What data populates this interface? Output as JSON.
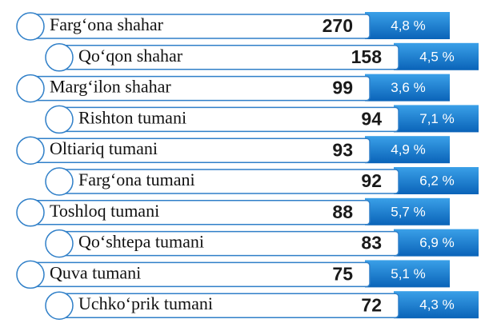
{
  "rows": [
    {
      "name": "Farg‘ona shahar",
      "value": "270",
      "percent": "4,8 %"
    },
    {
      "name": "Qo‘qon shahar",
      "value": "158",
      "percent": "4,5 %"
    },
    {
      "name": "Marg‘ilon shahar",
      "value": "99",
      "percent": "3,6 %"
    },
    {
      "name": "Rishton tumani",
      "value": "94",
      "percent": "7,1 %"
    },
    {
      "name": "Oltiariq tumani",
      "value": "93",
      "percent": "4,9 %"
    },
    {
      "name": "Farg‘ona tumani",
      "value": "92",
      "percent": "6,2 %"
    },
    {
      "name": "Toshloq tumani",
      "value": "88",
      "percent": "5,7 %"
    },
    {
      "name": "Qo‘shtepa tumani",
      "value": "83",
      "percent": "6,9 %"
    },
    {
      "name": "Quva tumani",
      "value": "75",
      "percent": "5,1 %"
    },
    {
      "name": "Uchko‘prik tumani",
      "value": "72",
      "percent": "4,3 %"
    }
  ]
}
